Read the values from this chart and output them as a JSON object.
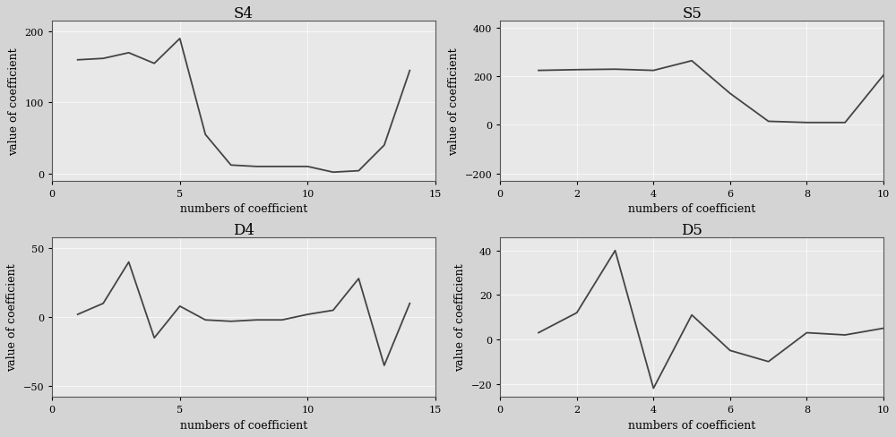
{
  "S4": {
    "title": "S4",
    "x": [
      1,
      2,
      3,
      4,
      5,
      6,
      7,
      8,
      9,
      10,
      11,
      12,
      13,
      14
    ],
    "y": [
      160,
      162,
      170,
      155,
      190,
      55,
      12,
      10,
      10,
      10,
      2,
      4,
      40,
      145
    ],
    "xlim": [
      0,
      15
    ],
    "ylim": [
      -10,
      215
    ],
    "yticks": [
      0,
      100,
      200
    ],
    "xticks": [
      0,
      5,
      10,
      15
    ]
  },
  "S5": {
    "title": "S5",
    "x": [
      1,
      2,
      3,
      4,
      5,
      6,
      7,
      8,
      9,
      10
    ],
    "y": [
      225,
      228,
      230,
      225,
      265,
      130,
      15,
      10,
      10,
      205
    ],
    "xlim": [
      0,
      10
    ],
    "ylim": [
      -230,
      430
    ],
    "yticks": [
      -200,
      0,
      200,
      400
    ],
    "xticks": [
      0,
      2,
      4,
      6,
      8,
      10
    ]
  },
  "D4": {
    "title": "D4",
    "x": [
      1,
      2,
      3,
      4,
      5,
      6,
      7,
      8,
      9,
      10,
      11,
      12,
      13,
      14
    ],
    "y": [
      2,
      10,
      40,
      -15,
      8,
      -2,
      -3,
      -2,
      -2,
      2,
      5,
      28,
      -35,
      10
    ],
    "xlim": [
      0,
      15
    ],
    "ylim": [
      -58,
      58
    ],
    "yticks": [
      -50,
      0,
      50
    ],
    "xticks": [
      0,
      5,
      10,
      15
    ]
  },
  "D5": {
    "title": "D5",
    "x": [
      1,
      2,
      3,
      4,
      5,
      6,
      7,
      8,
      9,
      10
    ],
    "y": [
      3,
      12,
      40,
      -22,
      11,
      -5,
      -10,
      3,
      2,
      5
    ],
    "xlim": [
      0,
      10
    ],
    "ylim": [
      -26,
      46
    ],
    "yticks": [
      -20,
      0,
      20,
      40
    ],
    "xticks": [
      0,
      2,
      4,
      6,
      8,
      10
    ]
  },
  "xlabel": "numbers of coefficient",
  "ylabel": "value of coefficient",
  "line_color": "#444444",
  "axes_facecolor": "#e8e8e8",
  "fig_facecolor": "#d4d4d4",
  "grid_color": "#ffffff",
  "spine_color": "#555555",
  "title_fontsize": 12,
  "label_fontsize": 9,
  "tick_fontsize": 8,
  "linewidth": 1.3
}
